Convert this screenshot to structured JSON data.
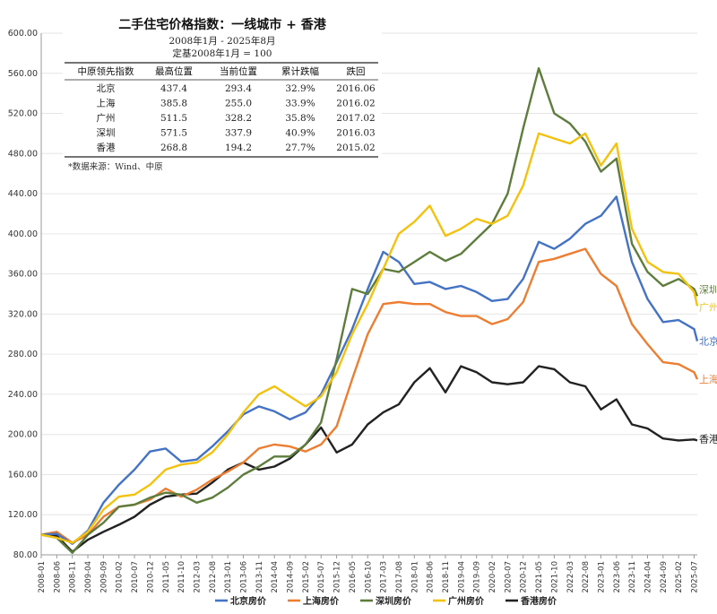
{
  "header": {
    "title": "二手住宅价格指数：一线城市 + 香港",
    "subtitle": "2008年1月 - 2025年8月",
    "base_note": "定基2008年1月 = 100"
  },
  "summary_table": {
    "columns": [
      "中原领先指数",
      "最高位置",
      "当前位置",
      "累计跌幅",
      "跌回"
    ],
    "rows": [
      [
        "北京",
        "437.4",
        "293.4",
        "32.9%",
        "2016.06"
      ],
      [
        "上海",
        "385.8",
        "255.0",
        "33.9%",
        "2016.02"
      ],
      [
        "广州",
        "511.5",
        "328.2",
        "35.8%",
        "2017.02"
      ],
      [
        "深圳",
        "571.5",
        "337.9",
        "40.9%",
        "2016.03"
      ],
      [
        "香港",
        "268.8",
        "194.2",
        "27.7%",
        "2015.02"
      ]
    ]
  },
  "source_note": "*数据来源：Wind、中原",
  "chart_data": {
    "type": "line",
    "ylim": [
      80,
      600
    ],
    "yticks": [
      "80.00",
      "120.00",
      "160.00",
      "200.00",
      "240.00",
      "280.00",
      "320.00",
      "360.00",
      "400.00",
      "440.00",
      "480.00",
      "520.00",
      "560.00",
      "600.00"
    ],
    "xticks": [
      "2008-01",
      "2008-06",
      "2008-11",
      "2009-04",
      "2009-09",
      "2010-02",
      "2010-07",
      "2010-12",
      "2011-05",
      "2011-10",
      "2012-03",
      "2012-08",
      "2013-01",
      "2013-06",
      "2013-11",
      "2014-04",
      "2014-09",
      "2015-02",
      "2015-07",
      "2015-12",
      "2016-05",
      "2016-10",
      "2017-03",
      "2017-08",
      "2018-01",
      "2018-06",
      "2018-11",
      "2019-04",
      "2019-09",
      "2020-02",
      "2020-07",
      "2020-12",
      "2021-05",
      "2021-10",
      "2022-03",
      "2022-08",
      "2023-01",
      "2023-06",
      "2023-11",
      "2024-04",
      "2024-09",
      "2025-02",
      "2025-07"
    ],
    "series": [
      {
        "name": "北京房价",
        "end_label": "北京",
        "color": "#4472c4",
        "points": [
          [
            "2008-01",
            100
          ],
          [
            "2008-06",
            101
          ],
          [
            "2008-11",
            91
          ],
          [
            "2009-04",
            104
          ],
          [
            "2009-09",
            132
          ],
          [
            "2010-02",
            150
          ],
          [
            "2010-07",
            165
          ],
          [
            "2010-12",
            183
          ],
          [
            "2011-05",
            186
          ],
          [
            "2011-10",
            173
          ],
          [
            "2012-03",
            175
          ],
          [
            "2012-08",
            188
          ],
          [
            "2013-01",
            203
          ],
          [
            "2013-06",
            220
          ],
          [
            "2013-11",
            228
          ],
          [
            "2014-04",
            223
          ],
          [
            "2014-09",
            215
          ],
          [
            "2015-02",
            222
          ],
          [
            "2015-07",
            240
          ],
          [
            "2015-12",
            272
          ],
          [
            "2016-05",
            305
          ],
          [
            "2016-10",
            345
          ],
          [
            "2017-03",
            382
          ],
          [
            "2017-08",
            372
          ],
          [
            "2018-01",
            350
          ],
          [
            "2018-06",
            352
          ],
          [
            "2018-11",
            345
          ],
          [
            "2019-04",
            348
          ],
          [
            "2019-09",
            342
          ],
          [
            "2020-02",
            333
          ],
          [
            "2020-07",
            335
          ],
          [
            "2020-12",
            355
          ],
          [
            "2021-05",
            392
          ],
          [
            "2021-10",
            385
          ],
          [
            "2022-03",
            395
          ],
          [
            "2022-08",
            410
          ],
          [
            "2023-01",
            418
          ],
          [
            "2023-06",
            437
          ],
          [
            "2023-11",
            372
          ],
          [
            "2024-04",
            335
          ],
          [
            "2024-09",
            312
          ],
          [
            "2025-02",
            314
          ],
          [
            "2025-07",
            305
          ],
          [
            "2025-08",
            293
          ]
        ]
      },
      {
        "name": "上海房价",
        "end_label": "上海",
        "color": "#ed7d31",
        "points": [
          [
            "2008-01",
            100
          ],
          [
            "2008-06",
            103
          ],
          [
            "2008-11",
            92
          ],
          [
            "2009-04",
            100
          ],
          [
            "2009-09",
            118
          ],
          [
            "2010-02",
            128
          ],
          [
            "2010-07",
            130
          ],
          [
            "2010-12",
            135
          ],
          [
            "2011-05",
            146
          ],
          [
            "2011-10",
            138
          ],
          [
            "2012-03",
            145
          ],
          [
            "2012-08",
            155
          ],
          [
            "2013-01",
            163
          ],
          [
            "2013-06",
            172
          ],
          [
            "2013-11",
            186
          ],
          [
            "2014-04",
            190
          ],
          [
            "2014-09",
            188
          ],
          [
            "2015-02",
            183
          ],
          [
            "2015-07",
            190
          ],
          [
            "2015-12",
            208
          ],
          [
            "2016-05",
            255
          ],
          [
            "2016-10",
            300
          ],
          [
            "2017-03",
            330
          ],
          [
            "2017-08",
            332
          ],
          [
            "2018-01",
            330
          ],
          [
            "2018-06",
            330
          ],
          [
            "2018-11",
            322
          ],
          [
            "2019-04",
            318
          ],
          [
            "2019-09",
            318
          ],
          [
            "2020-02",
            310
          ],
          [
            "2020-07",
            315
          ],
          [
            "2020-12",
            332
          ],
          [
            "2021-05",
            372
          ],
          [
            "2021-10",
            375
          ],
          [
            "2022-03",
            380
          ],
          [
            "2022-08",
            385
          ],
          [
            "2023-01",
            360
          ],
          [
            "2023-06",
            348
          ],
          [
            "2023-11",
            310
          ],
          [
            "2024-04",
            290
          ],
          [
            "2024-09",
            272
          ],
          [
            "2025-02",
            270
          ],
          [
            "2025-07",
            262
          ],
          [
            "2025-08",
            255
          ]
        ]
      },
      {
        "name": "深圳房价",
        "end_label": "深圳",
        "color": "#5e7d3d",
        "points": [
          [
            "2008-01",
            100
          ],
          [
            "2008-06",
            97
          ],
          [
            "2008-11",
            82
          ],
          [
            "2009-04",
            100
          ],
          [
            "2009-09",
            112
          ],
          [
            "2010-02",
            128
          ],
          [
            "2010-07",
            130
          ],
          [
            "2010-12",
            137
          ],
          [
            "2011-05",
            142
          ],
          [
            "2011-10",
            140
          ],
          [
            "2012-03",
            132
          ],
          [
            "2012-08",
            137
          ],
          [
            "2013-01",
            147
          ],
          [
            "2013-06",
            160
          ],
          [
            "2013-11",
            168
          ],
          [
            "2014-04",
            178
          ],
          [
            "2014-09",
            178
          ],
          [
            "2015-02",
            190
          ],
          [
            "2015-07",
            212
          ],
          [
            "2015-12",
            275
          ],
          [
            "2016-05",
            345
          ],
          [
            "2016-10",
            340
          ],
          [
            "2017-03",
            365
          ],
          [
            "2017-08",
            362
          ],
          [
            "2018-01",
            372
          ],
          [
            "2018-06",
            382
          ],
          [
            "2018-11",
            373
          ],
          [
            "2019-04",
            380
          ],
          [
            "2019-09",
            395
          ],
          [
            "2020-02",
            410
          ],
          [
            "2020-07",
            440
          ],
          [
            "2020-12",
            505
          ],
          [
            "2021-05",
            565
          ],
          [
            "2021-10",
            520
          ],
          [
            "2022-03",
            510
          ],
          [
            "2022-08",
            492
          ],
          [
            "2023-01",
            462
          ],
          [
            "2023-06",
            475
          ],
          [
            "2023-11",
            390
          ],
          [
            "2024-04",
            362
          ],
          [
            "2024-09",
            348
          ],
          [
            "2025-02",
            355
          ],
          [
            "2025-07",
            345
          ],
          [
            "2025-08",
            338
          ]
        ]
      },
      {
        "name": "广州房价",
        "end_label": "广州",
        "color": "#f2c20f",
        "points": [
          [
            "2008-01",
            100
          ],
          [
            "2008-06",
            97
          ],
          [
            "2008-11",
            92
          ],
          [
            "2009-04",
            103
          ],
          [
            "2009-09",
            125
          ],
          [
            "2010-02",
            138
          ],
          [
            "2010-07",
            140
          ],
          [
            "2010-12",
            150
          ],
          [
            "2011-05",
            165
          ],
          [
            "2011-10",
            170
          ],
          [
            "2012-03",
            172
          ],
          [
            "2012-08",
            182
          ],
          [
            "2013-01",
            200
          ],
          [
            "2013-06",
            222
          ],
          [
            "2013-11",
            240
          ],
          [
            "2014-04",
            248
          ],
          [
            "2014-09",
            238
          ],
          [
            "2015-02",
            228
          ],
          [
            "2015-07",
            238
          ],
          [
            "2015-12",
            262
          ],
          [
            "2016-05",
            300
          ],
          [
            "2016-10",
            330
          ],
          [
            "2017-03",
            365
          ],
          [
            "2017-08",
            400
          ],
          [
            "2018-01",
            412
          ],
          [
            "2018-06",
            428
          ],
          [
            "2018-11",
            398
          ],
          [
            "2019-04",
            405
          ],
          [
            "2019-09",
            415
          ],
          [
            "2020-02",
            410
          ],
          [
            "2020-07",
            418
          ],
          [
            "2020-12",
            448
          ],
          [
            "2021-05",
            500
          ],
          [
            "2021-10",
            495
          ],
          [
            "2022-03",
            490
          ],
          [
            "2022-08",
            500
          ],
          [
            "2023-01",
            468
          ],
          [
            "2023-06",
            490
          ],
          [
            "2023-11",
            405
          ],
          [
            "2024-04",
            372
          ],
          [
            "2024-09",
            362
          ],
          [
            "2025-02",
            360
          ],
          [
            "2025-07",
            342
          ],
          [
            "2025-08",
            328
          ]
        ]
      },
      {
        "name": "香港房价",
        "end_label": "香港",
        "color": "#222222",
        "points": [
          [
            "2008-01",
            100
          ],
          [
            "2008-06",
            99
          ],
          [
            "2008-11",
            83
          ],
          [
            "2009-04",
            95
          ],
          [
            "2009-09",
            103
          ],
          [
            "2010-02",
            110
          ],
          [
            "2010-07",
            118
          ],
          [
            "2010-12",
            130
          ],
          [
            "2011-05",
            138
          ],
          [
            "2011-10",
            140
          ],
          [
            "2012-03",
            141
          ],
          [
            "2012-08",
            152
          ],
          [
            "2013-01",
            165
          ],
          [
            "2013-06",
            172
          ],
          [
            "2013-11",
            165
          ],
          [
            "2014-04",
            168
          ],
          [
            "2014-09",
            176
          ],
          [
            "2015-02",
            190
          ],
          [
            "2015-07",
            207
          ],
          [
            "2015-12",
            182
          ],
          [
            "2016-05",
            190
          ],
          [
            "2016-10",
            210
          ],
          [
            "2017-03",
            222
          ],
          [
            "2017-08",
            230
          ],
          [
            "2018-01",
            252
          ],
          [
            "2018-06",
            266
          ],
          [
            "2018-11",
            242
          ],
          [
            "2019-04",
            268
          ],
          [
            "2019-09",
            262
          ],
          [
            "2020-02",
            252
          ],
          [
            "2020-07",
            250
          ],
          [
            "2020-12",
            252
          ],
          [
            "2021-05",
            268
          ],
          [
            "2021-10",
            265
          ],
          [
            "2022-03",
            252
          ],
          [
            "2022-08",
            248
          ],
          [
            "2023-01",
            225
          ],
          [
            "2023-06",
            235
          ],
          [
            "2023-11",
            210
          ],
          [
            "2024-04",
            206
          ],
          [
            "2024-09",
            196
          ],
          [
            "2025-02",
            194
          ],
          [
            "2025-07",
            195
          ],
          [
            "2025-08",
            194
          ]
        ]
      }
    ]
  }
}
